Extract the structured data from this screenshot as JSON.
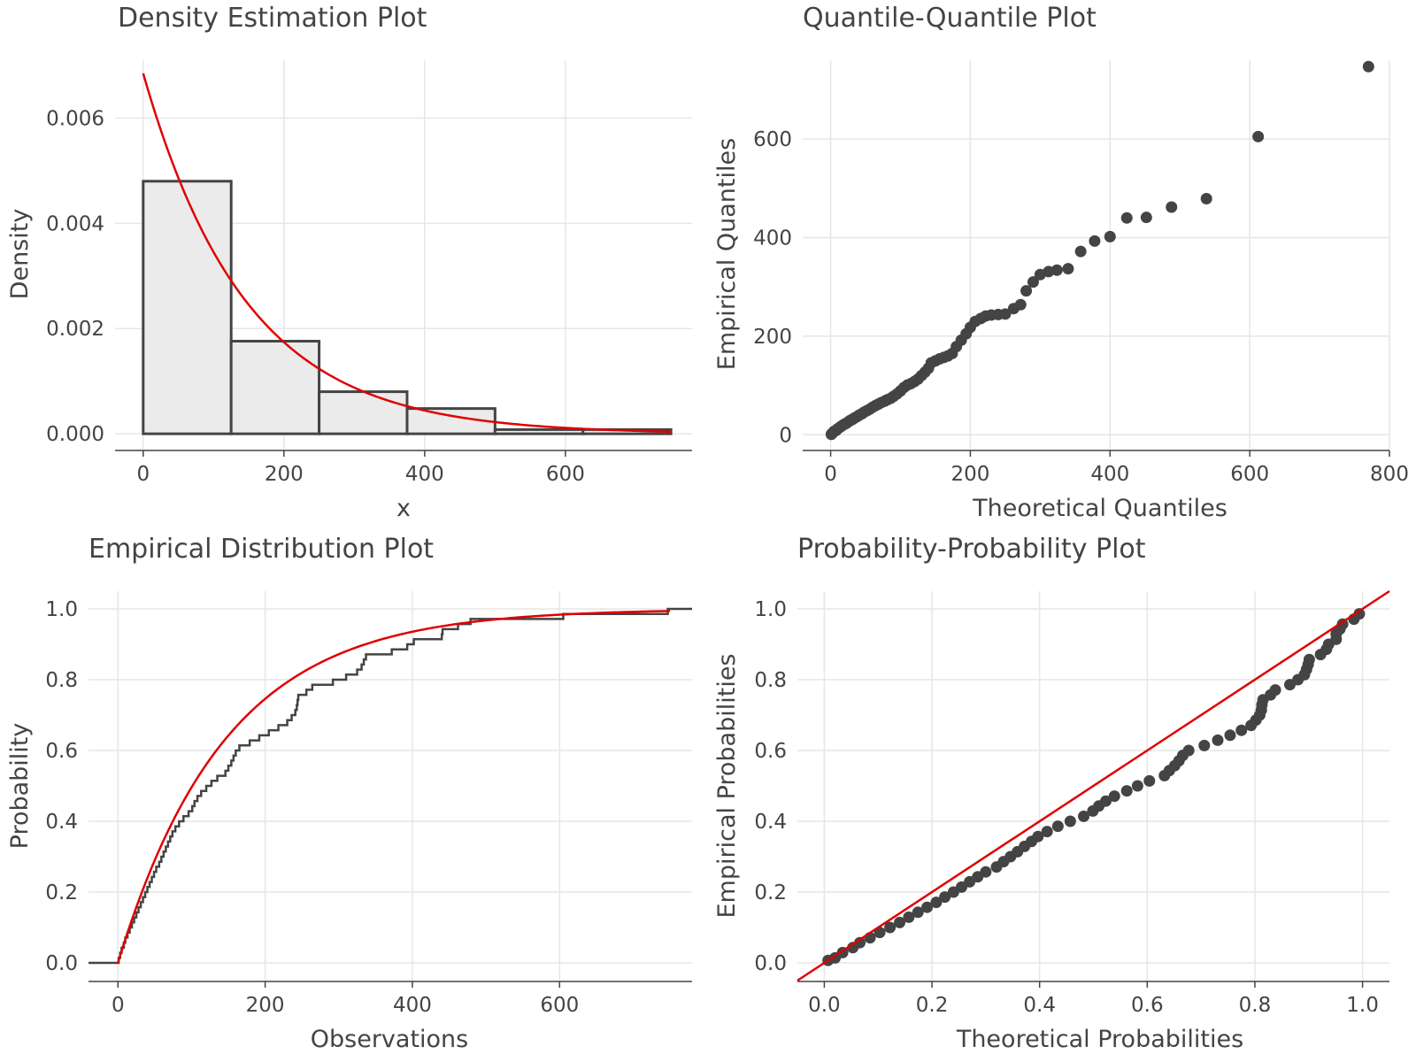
{
  "chart_data": [
    {
      "id": "density",
      "type": "bar",
      "title": "Density Estimation Plot",
      "xlabel": "x",
      "ylabel": "Density",
      "xlim": [
        -40,
        780
      ],
      "ylim": [
        -0.0003,
        0.0071
      ],
      "xticks": [
        0,
        200,
        400,
        600
      ],
      "xtick_labels": [
        "0",
        "200",
        "400",
        "600"
      ],
      "yticks": [
        0,
        0.002,
        0.004,
        0.006
      ],
      "ytick_labels": [
        "0.000",
        "0.002",
        "0.004",
        "0.006"
      ],
      "histogram": {
        "bin_edges": [
          0,
          125,
          250,
          375,
          500,
          625,
          750
        ],
        "values": [
          0.0048,
          0.00176,
          0.0008,
          0.00048,
          8e-05,
          8e-05
        ],
        "fill": "#ebebeb",
        "stroke": "#444444"
      },
      "fitted_curve": {
        "distribution": "exponential",
        "rate": 0.00685,
        "x_range": [
          0,
          750
        ],
        "color": "#e00000"
      },
      "grid": true
    },
    {
      "id": "qq",
      "type": "scatter",
      "title": "Quantile-Quantile Plot",
      "xlabel": "Theoretical Quantiles",
      "ylabel": "Empirical Quantiles",
      "xlim": [
        -40,
        800
      ],
      "ylim": [
        -30,
        760
      ],
      "xticks": [
        0,
        200,
        400,
        600,
        800
      ],
      "xtick_labels": [
        "0",
        "200",
        "400",
        "600",
        "800"
      ],
      "yticks": [
        0,
        200,
        400,
        600
      ],
      "ytick_labels": [
        "0",
        "200",
        "400",
        "600"
      ],
      "points": [
        [
          1,
          1
        ],
        [
          3,
          4
        ],
        [
          5,
          7
        ],
        [
          8,
          9
        ],
        [
          10,
          12
        ],
        [
          13,
          15
        ],
        [
          16,
          18
        ],
        [
          19,
          21
        ],
        [
          22,
          23
        ],
        [
          25,
          26
        ],
        [
          28,
          29
        ],
        [
          31,
          31
        ],
        [
          34,
          34
        ],
        [
          38,
          37
        ],
        [
          41,
          40
        ],
        [
          45,
          43
        ],
        [
          48,
          46
        ],
        [
          52,
          49
        ],
        [
          56,
          52
        ],
        [
          60,
          56
        ],
        [
          64,
          59
        ],
        [
          68,
          62
        ],
        [
          72,
          65
        ],
        [
          77,
          68
        ],
        [
          81,
          71
        ],
        [
          86,
          74
        ],
        [
          90,
          78
        ],
        [
          95,
          83
        ],
        [
          100,
          89
        ],
        [
          105,
          96
        ],
        [
          110,
          101
        ],
        [
          115,
          104
        ],
        [
          120,
          108
        ],
        [
          125,
          113
        ],
        [
          130,
          120
        ],
        [
          135,
          127
        ],
        [
          140,
          135
        ],
        [
          144,
          146
        ],
        [
          150,
          150
        ],
        [
          156,
          154
        ],
        [
          162,
          157
        ],
        [
          168,
          160
        ],
        [
          174,
          165
        ],
        [
          180,
          179
        ],
        [
          187,
          192
        ],
        [
          194,
          205
        ],
        [
          200,
          218
        ],
        [
          207,
          230
        ],
        [
          215,
          236
        ],
        [
          222,
          241
        ],
        [
          230,
          243
        ],
        [
          240,
          244
        ],
        [
          250,
          245
        ],
        [
          262,
          256
        ],
        [
          272,
          264
        ],
        [
          280,
          292
        ],
        [
          290,
          310
        ],
        [
          300,
          325
        ],
        [
          312,
          331
        ],
        [
          324,
          334
        ],
        [
          340,
          337
        ],
        [
          358,
          372
        ],
        [
          378,
          393
        ],
        [
          400,
          402
        ],
        [
          424,
          440
        ],
        [
          452,
          441
        ],
        [
          488,
          462
        ],
        [
          538,
          479
        ],
        [
          612,
          605
        ],
        [
          770,
          747
        ]
      ],
      "point_color": "#444444",
      "grid": true
    },
    {
      "id": "ecdf",
      "type": "line",
      "title": "Empirical Distribution Plot",
      "xlabel": "Observations",
      "ylabel": "Probability",
      "xlim": [
        -40,
        780
      ],
      "ylim": [
        -0.05,
        1.05
      ],
      "xticks": [
        0,
        200,
        400,
        600
      ],
      "xtick_labels": [
        "0",
        "200",
        "400",
        "600"
      ],
      "yticks": [
        0,
        0.2,
        0.4,
        0.6,
        0.8,
        1.0
      ],
      "ytick_labels": [
        "0.0",
        "0.2",
        "0.4",
        "0.6",
        "0.8",
        "1.0"
      ],
      "series": [
        {
          "kind": "ecdf-step",
          "observations": [
            1,
            3,
            5,
            8,
            10,
            13,
            16,
            19,
            22,
            25,
            28,
            31,
            34,
            37,
            40,
            43,
            46,
            49,
            52,
            56,
            59,
            62,
            65,
            68,
            71,
            74,
            78,
            83,
            89,
            96,
            101,
            104,
            108,
            113,
            120,
            127,
            135,
            146,
            150,
            154,
            157,
            160,
            165,
            179,
            192,
            205,
            218,
            230,
            236,
            241,
            243,
            244,
            245,
            256,
            264,
            292,
            310,
            325,
            331,
            334,
            337,
            372,
            393,
            402,
            440,
            441,
            462,
            479,
            605,
            747
          ],
          "x_extent": [
            -40,
            780
          ],
          "color": "#444444"
        },
        {
          "kind": "fitted-cdf",
          "distribution": "exponential",
          "rate": 0.00685,
          "x_range": [
            0,
            750
          ],
          "color": "#e00000"
        }
      ],
      "grid": true
    },
    {
      "id": "pp",
      "type": "scatter",
      "title": "Probability-Probability Plot",
      "xlabel": "Theoretical Probabilities",
      "ylabel": "Empirical Probabilities",
      "xlim": [
        -0.05,
        1.05
      ],
      "ylim": [
        -0.05,
        1.05
      ],
      "xticks": [
        0,
        0.2,
        0.4,
        0.6,
        0.8,
        1.0
      ],
      "xtick_labels": [
        "0.0",
        "0.2",
        "0.4",
        "0.6",
        "0.8",
        "1.0"
      ],
      "yticks": [
        0,
        0.2,
        0.4,
        0.6,
        0.8,
        1.0
      ],
      "ytick_labels": [
        "0.0",
        "0.2",
        "0.4",
        "0.6",
        "0.8",
        "1.0"
      ],
      "points": [
        [
          0.007,
          0.007
        ],
        [
          0.02,
          0.014
        ],
        [
          0.034,
          0.029
        ],
        [
          0.053,
          0.043
        ],
        [
          0.066,
          0.057
        ],
        [
          0.085,
          0.071
        ],
        [
          0.103,
          0.086
        ],
        [
          0.122,
          0.1
        ],
        [
          0.14,
          0.114
        ],
        [
          0.157,
          0.129
        ],
        [
          0.174,
          0.143
        ],
        [
          0.191,
          0.157
        ],
        [
          0.208,
          0.171
        ],
        [
          0.224,
          0.186
        ],
        [
          0.24,
          0.2
        ],
        [
          0.255,
          0.214
        ],
        [
          0.27,
          0.229
        ],
        [
          0.285,
          0.243
        ],
        [
          0.3,
          0.257
        ],
        [
          0.32,
          0.271
        ],
        [
          0.333,
          0.286
        ],
        [
          0.346,
          0.3
        ],
        [
          0.359,
          0.314
        ],
        [
          0.372,
          0.329
        ],
        [
          0.385,
          0.343
        ],
        [
          0.397,
          0.357
        ],
        [
          0.414,
          0.371
        ],
        [
          0.434,
          0.386
        ],
        [
          0.457,
          0.4
        ],
        [
          0.482,
          0.414
        ],
        [
          0.499,
          0.429
        ],
        [
          0.51,
          0.443
        ],
        [
          0.523,
          0.457
        ],
        [
          0.539,
          0.471
        ],
        [
          0.562,
          0.486
        ],
        [
          0.582,
          0.5
        ],
        [
          0.604,
          0.514
        ],
        [
          0.632,
          0.529
        ],
        [
          0.641,
          0.543
        ],
        [
          0.651,
          0.557
        ],
        [
          0.659,
          0.571
        ],
        [
          0.666,
          0.586
        ],
        [
          0.677,
          0.6
        ],
        [
          0.706,
          0.614
        ],
        [
          0.731,
          0.629
        ],
        [
          0.754,
          0.643
        ],
        [
          0.775,
          0.657
        ],
        [
          0.793,
          0.671
        ],
        [
          0.802,
          0.686
        ],
        [
          0.809,
          0.7
        ],
        [
          0.812,
          0.714
        ],
        [
          0.813,
          0.729
        ],
        [
          0.815,
          0.743
        ],
        [
          0.829,
          0.757
        ],
        [
          0.838,
          0.771
        ],
        [
          0.865,
          0.786
        ],
        [
          0.88,
          0.8
        ],
        [
          0.892,
          0.814
        ],
        [
          0.896,
          0.829
        ],
        [
          0.899,
          0.843
        ],
        [
          0.901,
          0.857
        ],
        [
          0.922,
          0.871
        ],
        [
          0.933,
          0.886
        ],
        [
          0.937,
          0.9
        ],
        [
          0.951,
          0.914
        ],
        [
          0.951,
          0.929
        ],
        [
          0.958,
          0.943
        ],
        [
          0.963,
          0.957
        ],
        [
          0.984,
          0.971
        ],
        [
          0.994,
          0.986
        ]
      ],
      "point_color": "#444444",
      "reference_line": {
        "slope": 1,
        "intercept": 0,
        "color": "#e00000"
      },
      "grid": true
    }
  ]
}
